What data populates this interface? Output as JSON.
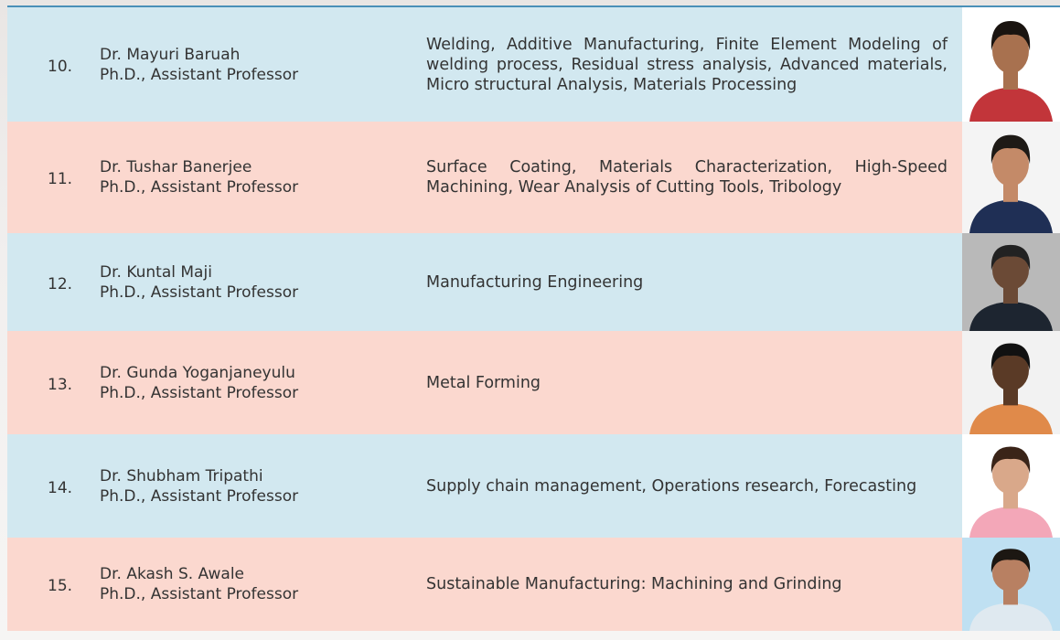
{
  "table": {
    "rows": [
      {
        "number": "10.",
        "name": "Dr. Mayuri Baruah",
        "designation": "Ph.D., Assistant Professor",
        "research": "Welding, Additive Manufacturing, Finite Element Modeling of welding process, Residual stress analysis, Advanced materials, Micro structural Analysis, Materials Processing"
      },
      {
        "number": "11.",
        "name": "Dr. Tushar Banerjee",
        "designation": "Ph.D., Assistant Professor",
        "research": "Surface Coating, Materials Characterization, High-Speed Machining, Wear Analysis of Cutting Tools, Tribology"
      },
      {
        "number": "12.",
        "name": "Dr. Kuntal Maji",
        "designation": "Ph.D., Assistant Professor",
        "research": "Manufacturing Engineering"
      },
      {
        "number": "13.",
        "name": "Dr. Gunda Yoganjaneyulu",
        "designation": "Ph.D., Assistant Professor",
        "research": "Metal Forming"
      },
      {
        "number": "14.",
        "name": "Dr. Shubham Tripathi",
        "designation": "Ph.D., Assistant Professor",
        "research": "Supply chain management, Operations research, Forecasting"
      },
      {
        "number": "15.",
        "name": "Dr. Akash S. Awale",
        "designation": "Ph.D., Assistant Professor",
        "research": "Sustainable Manufacturing: Machining and Grinding"
      }
    ]
  }
}
